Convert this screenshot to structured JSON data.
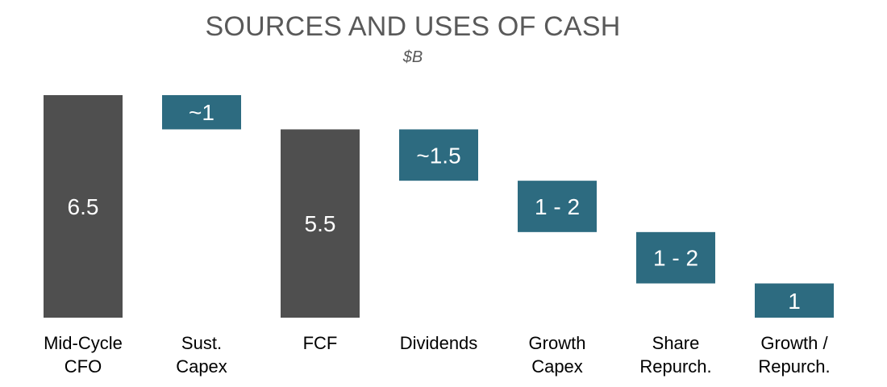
{
  "chart_data": {
    "type": "bar",
    "title": "SOURCES AND USES OF CASH",
    "subtitle": "$B",
    "categories": [
      [
        "Mid-Cycle",
        "CFO"
      ],
      [
        "Sust.",
        "Capex"
      ],
      [
        "FCF"
      ],
      [
        "Dividends"
      ],
      [
        "Growth",
        "Capex"
      ],
      [
        "Share",
        "Repurch."
      ],
      [
        "Growth /",
        "Repurch."
      ]
    ],
    "bars": [
      {
        "kind": "total",
        "base": 0,
        "top": 6.5,
        "label": "6.5"
      },
      {
        "kind": "use",
        "base": 5.5,
        "top": 6.5,
        "label": "~1"
      },
      {
        "kind": "total",
        "base": 0,
        "top": 5.5,
        "label": "5.5"
      },
      {
        "kind": "use",
        "base": 4.0,
        "top": 5.5,
        "label": "~1.5"
      },
      {
        "kind": "use",
        "base": 2.5,
        "top": 4.0,
        "label": "1 - 2"
      },
      {
        "kind": "use",
        "base": 1.0,
        "top": 2.5,
        "label": "1 - 2"
      },
      {
        "kind": "use",
        "base": 0,
        "top": 1.0,
        "label": "1"
      }
    ],
    "ylim": [
      0,
      6.5
    ],
    "colors": {
      "total": "#4f4f4f",
      "use": "#2d6b80"
    }
  }
}
